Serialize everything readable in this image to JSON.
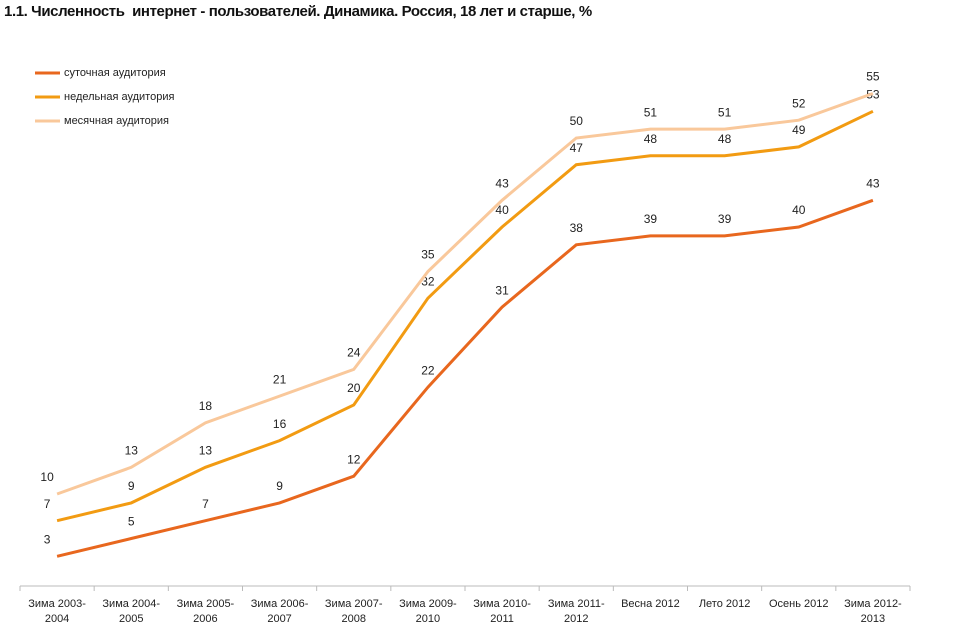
{
  "chart_data": {
    "type": "line",
    "title": "1.1. Численность  интернет - пользователей. Динамика. Россия, 18 лет и старше, %",
    "categories": [
      "Зима 2003-2004",
      "Зима 2004-2005",
      "Зима 2005-2006",
      "Зима 2006-2007",
      "Зима 2007-2008",
      "Зима 2009-2010",
      "Зима 2010-2011",
      "Зима 2011-2012",
      "Весна 2012",
      "Лето 2012",
      "Осень 2012",
      "Зима 2012-2013"
    ],
    "series": [
      {
        "name": "суточная аудитория",
        "color": "#e8671e",
        "values": [
          3,
          5,
          7,
          9,
          12,
          22,
          31,
          38,
          39,
          39,
          40,
          43
        ]
      },
      {
        "name": "недельная аудитория",
        "color": "#f29b12",
        "values": [
          7,
          9,
          13,
          16,
          20,
          32,
          40,
          47,
          48,
          48,
          49,
          53
        ]
      },
      {
        "name": "месячная аудитория",
        "color": "#f9c89b",
        "values": [
          10,
          13,
          18,
          21,
          24,
          35,
          43,
          50,
          51,
          51,
          52,
          55
        ]
      }
    ],
    "legend": "top-left"
  }
}
